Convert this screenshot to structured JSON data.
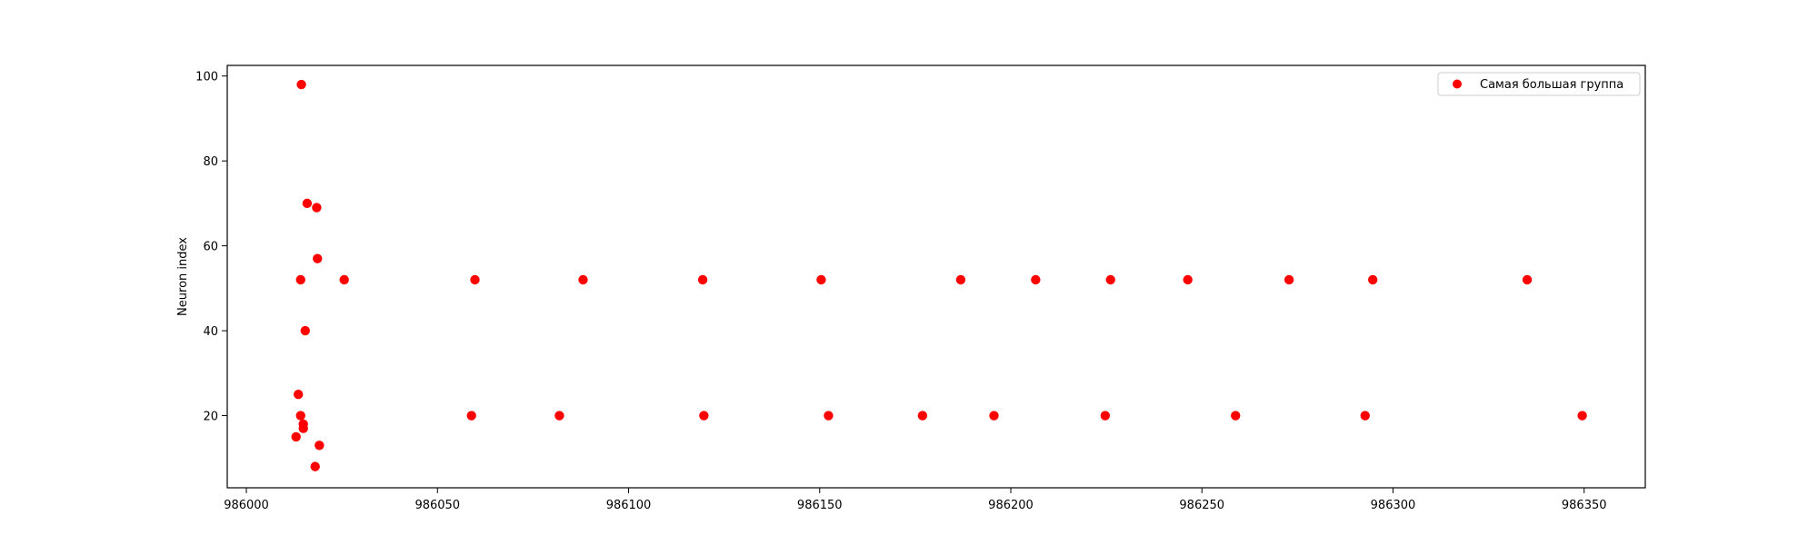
{
  "chart_data": {
    "type": "scatter",
    "xlabel": "",
    "ylabel": "Neuron index",
    "xlim": [
      985995,
      986366
    ],
    "ylim": [
      3,
      102.5
    ],
    "xticks": [
      986000,
      986050,
      986100,
      986150,
      986200,
      986250,
      986300,
      986350
    ],
    "yticks": [
      20,
      40,
      60,
      80,
      100
    ],
    "xtick_labels": [
      "986000",
      "986050",
      "986100",
      "986150",
      "986200",
      "986250",
      "986300",
      "986350"
    ],
    "ytick_labels": [
      "20",
      "40",
      "60",
      "80",
      "100"
    ],
    "grid": false,
    "legend_position": "top-right",
    "series": [
      {
        "name": "Самая большая группа",
        "color": "#ff0000",
        "points": [
          [
            986014.4,
            98
          ],
          [
            986015.9,
            70
          ],
          [
            986018.4,
            69
          ],
          [
            986018.6,
            57
          ],
          [
            986014.2,
            52
          ],
          [
            986015.4,
            40
          ],
          [
            986013.6,
            25
          ],
          [
            986014.2,
            20
          ],
          [
            986014.9,
            18
          ],
          [
            986014.9,
            17
          ],
          [
            986013.0,
            15
          ],
          [
            986019.1,
            13
          ],
          [
            986018.0,
            8
          ],
          [
            986025.6,
            52
          ],
          [
            986059.8,
            52
          ],
          [
            986088.1,
            52
          ],
          [
            986119.4,
            52
          ],
          [
            986150.4,
            52
          ],
          [
            986186.9,
            52
          ],
          [
            986206.5,
            52
          ],
          [
            986226.1,
            52
          ],
          [
            986246.3,
            52
          ],
          [
            986272.8,
            52
          ],
          [
            986294.7,
            52
          ],
          [
            986335.1,
            52
          ],
          [
            986058.9,
            20
          ],
          [
            986081.9,
            20
          ],
          [
            986119.7,
            20
          ],
          [
            986152.3,
            20
          ],
          [
            986176.9,
            20
          ],
          [
            986195.6,
            20
          ],
          [
            986224.7,
            20
          ],
          [
            986258.8,
            20
          ],
          [
            986292.7,
            20
          ],
          [
            986349.5,
            20
          ]
        ]
      }
    ]
  }
}
